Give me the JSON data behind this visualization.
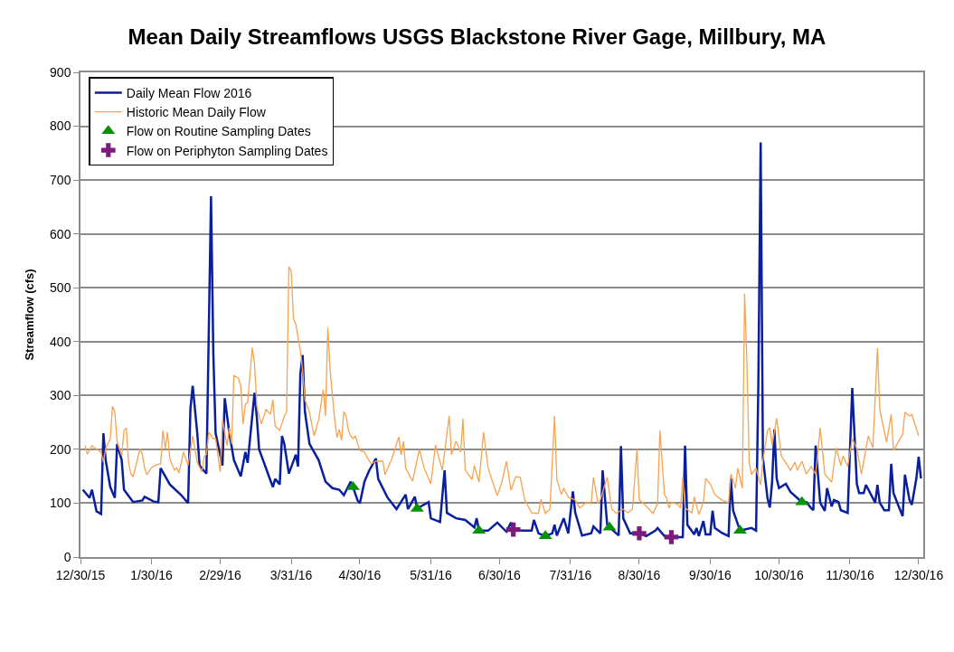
{
  "chart_data": {
    "type": "line",
    "title": "Mean Daily Streamflows USGS Blackstone River Gage, Millbury, MA",
    "ylabel": "Streamflow (cfs)",
    "xlim": [
      "2015-12-30",
      "2017-01-01"
    ],
    "xticks": [
      {
        "value": "2015-12-30",
        "label": "12/30/15"
      },
      {
        "value": "2016-01-30",
        "label": "1/30/16"
      },
      {
        "value": "2016-02-29",
        "label": "2/29/16"
      },
      {
        "value": "2016-03-31",
        "label": "3/31/16"
      },
      {
        "value": "2016-04-30",
        "label": "4/30/16"
      },
      {
        "value": "2016-05-31",
        "label": "5/31/16"
      },
      {
        "value": "2016-06-30",
        "label": "6/30/16"
      },
      {
        "value": "2016-07-31",
        "label": "7/31/16"
      },
      {
        "value": "2016-08-30",
        "label": "8/30/16"
      },
      {
        "value": "2016-09-30",
        "label": "9/30/16"
      },
      {
        "value": "2016-10-30",
        "label": "10/30/16"
      },
      {
        "value": "2016-11-30",
        "label": "11/30/16"
      },
      {
        "value": "2016-12-30",
        "label": "12/30/16"
      }
    ],
    "ylim": [
      0,
      900
    ],
    "yticks": [
      0,
      100,
      200,
      300,
      400,
      500,
      600,
      700,
      800,
      900
    ],
    "grid": "y",
    "legend": "top left",
    "series": [
      {
        "name": "Daily Mean Flow 2016",
        "color": "#0a1f9c",
        "marker": "none",
        "x": [
          "2015-12-31",
          "2016-01-02",
          "2016-01-03",
          "2016-01-04",
          "2016-01-06",
          "2016-01-08",
          "2016-01-09",
          "2016-01-10",
          "2016-01-12",
          "2016-01-14",
          "2016-01-15",
          "2016-01-17",
          "2016-01-18",
          "2016-01-22",
          "2016-01-26",
          "2016-01-27",
          "2016-01-31",
          "2016-02-02",
          "2016-02-03",
          "2016-02-07",
          "2016-02-12",
          "2016-02-15",
          "2016-02-16",
          "2016-02-17",
          "2016-02-19",
          "2016-02-20",
          "2016-02-23",
          "2016-02-25",
          "2016-02-26",
          "2016-02-27",
          "2016-02-29",
          "2016-03-01",
          "2016-03-02",
          "2016-03-04",
          "2016-03-06",
          "2016-03-09",
          "2016-03-11",
          "2016-03-12",
          "2016-03-15",
          "2016-03-16",
          "2016-03-17",
          "2016-03-20",
          "2016-03-23",
          "2016-03-24",
          "2016-03-26",
          "2016-03-27",
          "2016-03-28",
          "2016-03-30",
          "2016-04-02",
          "2016-04-03",
          "2016-04-04",
          "2016-04-05",
          "2016-04-06",
          "2016-04-08",
          "2016-04-12",
          "2016-04-15",
          "2016-04-18",
          "2016-04-21",
          "2016-04-23",
          "2016-04-26",
          "2016-04-27",
          "2016-04-29",
          "2016-04-30",
          "2016-05-02",
          "2016-05-04",
          "2016-05-07",
          "2016-05-08",
          "2016-05-12",
          "2016-05-16",
          "2016-05-20",
          "2016-05-21",
          "2016-05-24",
          "2016-05-25",
          "2016-05-30",
          "2016-05-31",
          "2016-06-04",
          "2016-06-06",
          "2016-06-07",
          "2016-06-11",
          "2016-06-15",
          "2016-06-19",
          "2016-06-20",
          "2016-06-21",
          "2016-06-25",
          "2016-06-29",
          "2016-07-03",
          "2016-07-05",
          "2016-07-06",
          "2016-07-10",
          "2016-07-14",
          "2016-07-15",
          "2016-07-17",
          "2016-07-20",
          "2016-07-23",
          "2016-07-24",
          "2016-07-25",
          "2016-07-28",
          "2016-07-30",
          "2016-08-01",
          "2016-08-02",
          "2016-08-05",
          "2016-08-09",
          "2016-08-10",
          "2016-08-13",
          "2016-08-14",
          "2016-08-16",
          "2016-08-17",
          "2016-08-21",
          "2016-08-22",
          "2016-08-23",
          "2016-08-26",
          "2016-08-30",
          "2016-09-02",
          "2016-09-06",
          "2016-09-07",
          "2016-09-10",
          "2016-09-13",
          "2016-09-18",
          "2016-09-19",
          "2016-09-20",
          "2016-09-23",
          "2016-09-24",
          "2016-09-25",
          "2016-09-27",
          "2016-09-28",
          "2016-09-30",
          "2016-10-01",
          "2016-10-02",
          "2016-10-05",
          "2016-10-08",
          "2016-10-09",
          "2016-10-10",
          "2016-10-13",
          "2016-10-18",
          "2016-10-20",
          "2016-10-21",
          "2016-10-22",
          "2016-10-23",
          "2016-10-25",
          "2016-10-26",
          "2016-10-27",
          "2016-10-28",
          "2016-10-29",
          "2016-10-30",
          "2016-11-02",
          "2016-11-04",
          "2016-11-09",
          "2016-11-11",
          "2016-11-13",
          "2016-11-14",
          "2016-11-15",
          "2016-11-17",
          "2016-11-19",
          "2016-11-20",
          "2016-11-22",
          "2016-11-23",
          "2016-11-25",
          "2016-11-26",
          "2016-11-29",
          "2016-12-01",
          "2016-12-03",
          "2016-12-04",
          "2016-12-06",
          "2016-12-07",
          "2016-12-11",
          "2016-12-12",
          "2016-12-13",
          "2016-12-15",
          "2016-12-17",
          "2016-12-18",
          "2016-12-19",
          "2016-12-21",
          "2016-12-23",
          "2016-12-24",
          "2016-12-26",
          "2016-12-27",
          "2016-12-29",
          "2016-12-30",
          "2016-12-31"
        ],
        "values": [
          125,
          115,
          110,
          125,
          85,
          80,
          230,
          180,
          130,
          110,
          210,
          180,
          125,
          102,
          105,
          112,
          103,
          102,
          165,
          135,
          115,
          100,
          275,
          318,
          230,
          170,
          155,
          670,
          380,
          230,
          190,
          170,
          295,
          230,
          180,
          150,
          195,
          175,
          305,
          260,
          200,
          165,
          130,
          145,
          135,
          225,
          210,
          155,
          190,
          168,
          340,
          375,
          270,
          210,
          180,
          140,
          128,
          125,
          115,
          140,
          130,
          105,
          100,
          140,
          160,
          183,
          145,
          111,
          89,
          116,
          89,
          112,
          90,
          102,
          72,
          65,
          161,
          82,
          72,
          69,
          55,
          72,
          49,
          49,
          64,
          47,
          64,
          51,
          49,
          49,
          69,
          44,
          39,
          44,
          60,
          40,
          72,
          44,
          122,
          83,
          40,
          44,
          57,
          44,
          161,
          60,
          55,
          40,
          206,
          72,
          44,
          44,
          39,
          49,
          54,
          39,
          37,
          37,
          207,
          60,
          42,
          54,
          39,
          67,
          42,
          42,
          86,
          54,
          45,
          39,
          146,
          86,
          49,
          54,
          49,
          322,
          770,
          183,
          109,
          92,
          139,
          237,
          146,
          128,
          136,
          121,
          102,
          102,
          91,
          87,
          207,
          101,
          86,
          128,
          94,
          106,
          102,
          87,
          82,
          314,
          136,
          119,
          119,
          134,
          101,
          134,
          101,
          87,
          87,
          173,
          119,
          97,
          76,
          153,
          106,
          97,
          146,
          186,
          146
        ]
      },
      {
        "name": "Historic Mean Daily Flow",
        "color": "#f9a24f",
        "marker": "none",
        "x": [
          "2016-01-01",
          "2016-01-02",
          "2016-01-04",
          "2016-01-05",
          "2016-01-08",
          "2016-01-09",
          "2016-01-10",
          "2016-01-12",
          "2016-01-13",
          "2016-01-14",
          "2016-01-15",
          "2016-01-17",
          "2016-01-18",
          "2016-01-19",
          "2016-01-20",
          "2016-01-21",
          "2016-01-22",
          "2016-01-25",
          "2016-01-26",
          "2016-01-27",
          "2016-01-28",
          "2016-01-30",
          "2016-02-01",
          "2016-02-03",
          "2016-02-04",
          "2016-02-05",
          "2016-02-06",
          "2016-02-07",
          "2016-02-09",
          "2016-02-10",
          "2016-02-11",
          "2016-02-13",
          "2016-02-15",
          "2016-02-17",
          "2016-02-19",
          "2016-02-21",
          "2016-02-22",
          "2016-02-23",
          "2016-02-24",
          "2016-02-26",
          "2016-02-27",
          "2016-02-29",
          "2016-03-01",
          "2016-03-03",
          "2016-03-04",
          "2016-03-05",
          "2016-03-06",
          "2016-03-08",
          "2016-03-09",
          "2016-03-10",
          "2016-03-11",
          "2016-03-12",
          "2016-03-14",
          "2016-03-15",
          "2016-03-16",
          "2016-03-17",
          "2016-03-18",
          "2016-03-20",
          "2016-03-22",
          "2016-03-23",
          "2016-03-24",
          "2016-03-26",
          "2016-03-28",
          "2016-03-29",
          "2016-03-30",
          "2016-03-31",
          "2016-04-01",
          "2016-04-02",
          "2016-04-04",
          "2016-04-05",
          "2016-04-06",
          "2016-04-08",
          "2016-04-10",
          "2016-04-12",
          "2016-04-14",
          "2016-04-15",
          "2016-04-16",
          "2016-04-17",
          "2016-04-19",
          "2016-04-20",
          "2016-04-21",
          "2016-04-22",
          "2016-04-23",
          "2016-04-24",
          "2016-04-25",
          "2016-04-26",
          "2016-04-27",
          "2016-04-28",
          "2016-04-30",
          "2016-05-02",
          "2016-05-03",
          "2016-05-05",
          "2016-05-07",
          "2016-05-10",
          "2016-05-11",
          "2016-05-14",
          "2016-05-17",
          "2016-05-18",
          "2016-05-19",
          "2016-05-20",
          "2016-05-23",
          "2016-05-24",
          "2016-05-26",
          "2016-05-28",
          "2016-05-31",
          "2016-06-02",
          "2016-06-05",
          "2016-06-08",
          "2016-06-09",
          "2016-06-11",
          "2016-06-13",
          "2016-06-14",
          "2016-06-15",
          "2016-06-18",
          "2016-06-19",
          "2016-06-21",
          "2016-06-23",
          "2016-06-25",
          "2016-06-27",
          "2016-06-29",
          "2016-07-01",
          "2016-07-03",
          "2016-07-05",
          "2016-07-07",
          "2016-07-09",
          "2016-07-11",
          "2016-07-14",
          "2016-07-17",
          "2016-07-18",
          "2016-07-20",
          "2016-07-22",
          "2016-07-24",
          "2016-07-25",
          "2016-07-27",
          "2016-07-28",
          "2016-07-30",
          "2016-08-02",
          "2016-08-04",
          "2016-08-07",
          "2016-08-09",
          "2016-08-10",
          "2016-08-12",
          "2016-08-13",
          "2016-08-16",
          "2016-08-18",
          "2016-08-20",
          "2016-08-23",
          "2016-08-25",
          "2016-08-27",
          "2016-08-29",
          "2016-08-30",
          "2016-09-01",
          "2016-09-05",
          "2016-09-07",
          "2016-09-08",
          "2016-09-10",
          "2016-09-11",
          "2016-09-12",
          "2016-09-13",
          "2016-09-16",
          "2016-09-17",
          "2016-09-18",
          "2016-09-19",
          "2016-09-22",
          "2016-09-23",
          "2016-09-25",
          "2016-09-27",
          "2016-09-28",
          "2016-09-30",
          "2016-10-02",
          "2016-10-05",
          "2016-10-08",
          "2016-10-09",
          "2016-10-11",
          "2016-10-12",
          "2016-10-14",
          "2016-10-15",
          "2016-10-16",
          "2016-10-17",
          "2016-10-18",
          "2016-10-20",
          "2016-10-22",
          "2016-10-23",
          "2016-10-25",
          "2016-10-26",
          "2016-10-27",
          "2016-10-29",
          "2016-10-31",
          "2016-11-03",
          "2016-11-04",
          "2016-11-06",
          "2016-11-07",
          "2016-11-09",
          "2016-11-11",
          "2016-11-13",
          "2016-11-15",
          "2016-11-17",
          "2016-11-19",
          "2016-11-22",
          "2016-11-24",
          "2016-11-26",
          "2016-11-27",
          "2016-11-29",
          "2016-12-01",
          "2016-12-03",
          "2016-12-05",
          "2016-12-08",
          "2016-12-10",
          "2016-12-12",
          "2016-12-13",
          "2016-12-16",
          "2016-12-18",
          "2016-12-19",
          "2016-12-21",
          "2016-12-23",
          "2016-12-24",
          "2016-12-26",
          "2016-12-27",
          "2016-12-30"
        ],
        "values": [
          207,
          191,
          207,
          203,
          195,
          176,
          201,
          220,
          280,
          269,
          213,
          188,
          235,
          240,
          176,
          154,
          149,
          201,
          191,
          165,
          153,
          166,
          171,
          173,
          235,
          201,
          232,
          183,
          161,
          166,
          156,
          195,
          170,
          225,
          176,
          158,
          186,
          191,
          232,
          220,
          220,
          158,
          255,
          207,
          240,
          210,
          337,
          332,
          317,
          247,
          284,
          287,
          389,
          359,
          280,
          262,
          247,
          274,
          265,
          292,
          243,
          235,
          262,
          269,
          539,
          531,
          442,
          433,
          384,
          347,
          292,
          269,
          225,
          255,
          311,
          262,
          426,
          347,
          255,
          222,
          237,
          217,
          270,
          262,
          235,
          225,
          220,
          225,
          198,
          195,
          186,
          173,
          178,
          178,
          153,
          183,
          223,
          190,
          215,
          165,
          141,
          161,
          200,
          166,
          136,
          208,
          161,
          262,
          190,
          215,
          195,
          257,
          161,
          144,
          170,
          139,
          232,
          165,
          139,
          114,
          139,
          178,
          124,
          149,
          148,
          106,
          82,
          81,
          107,
          81,
          89,
          262,
          144,
          116,
          128,
          111,
          106,
          91,
          102,
          99,
          148,
          99,
          107,
          148,
          89,
          81,
          89,
          82,
          89,
          200,
          106,
          99,
          81,
          99,
          235,
          116,
          109,
          91,
          102,
          97,
          91,
          149,
          91,
          82,
          112,
          79,
          102,
          146,
          136,
          116,
          106,
          101,
          154,
          128,
          165,
          128,
          489,
          363,
          176,
          153,
          165,
          134,
          180,
          235,
          240,
          207,
          258,
          188,
          168,
          161,
          176,
          161,
          178,
          154,
          168,
          154,
          240,
          154,
          139,
          203,
          170,
          188,
          168,
          220,
          201,
          154,
          225,
          203,
          388,
          274,
          213,
          265,
          198,
          213,
          228,
          269,
          262,
          265,
          225
        ]
      },
      {
        "name": "Flow on Routine Sampling Dates",
        "type": "scatter",
        "color": "#079107",
        "marker": "triangle",
        "x": [
          "2016-04-27",
          "2016-05-25",
          "2016-06-21",
          "2016-07-20",
          "2016-08-17",
          "2016-10-13",
          "2016-11-09"
        ],
        "values": [
          130,
          90,
          49,
          39,
          55,
          49,
          102
        ]
      },
      {
        "name": "Flow on Periphyton Sampling Dates",
        "type": "scatter",
        "color": "#7b1c7b",
        "marker": "cross",
        "x": [
          "2016-07-06",
          "2016-08-30",
          "2016-09-13"
        ],
        "values": [
          51,
          44,
          37
        ]
      }
    ]
  }
}
